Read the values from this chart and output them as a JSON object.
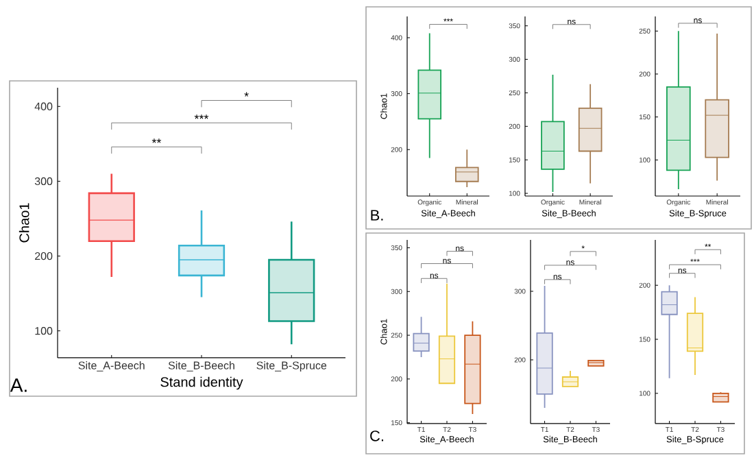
{
  "chart_data": [
    {
      "type": "box",
      "categories": [
        "Site_A-Beech",
        "Site_B-Beech",
        "Site_B-Spruce"
      ],
      "xlabel": "Stand identity",
      "ylabel": "Chao1",
      "ylim": [
        64,
        425
      ],
      "yticks": [
        100,
        200,
        300,
        400
      ],
      "colors": [
        "#f24a4a",
        "#3ab5d3",
        "#119a82"
      ],
      "boxes": [
        {
          "low": 172,
          "q1": 220,
          "median": 248,
          "q3": 284,
          "high": 310
        },
        {
          "low": 145,
          "q1": 174,
          "median": 195,
          "q3": 214,
          "high": 261
        },
        {
          "low": 82,
          "q1": 113,
          "median": 151,
          "q3": 195,
          "high": 246
        }
      ],
      "annotations": [
        "**",
        "***",
        "*",
        "A."
      ]
    },
    {
      "type": "box",
      "categories": [
        "Organic",
        "Mineral"
      ],
      "xlabel": "Site_A-Beech",
      "ylabel": "Chao1",
      "ylim": [
        117,
        438
      ],
      "yticks": [
        200,
        300,
        400
      ],
      "colors": [
        "#16a254",
        "#a57c52"
      ],
      "boxes": [
        {
          "low": 185,
          "q1": 255,
          "median": 301,
          "q3": 342,
          "high": 408
        },
        {
          "low": 133,
          "q1": 143,
          "median": 160,
          "q3": 168,
          "high": 200
        }
      ],
      "annotations": [
        "***",
        "B."
      ]
    },
    {
      "type": "box",
      "categories": [
        "Organic",
        "Mineral"
      ],
      "xlabel": "Site_B-Beech",
      "ylim": [
        96,
        364
      ],
      "yticks": [
        100,
        150,
        200,
        250,
        300,
        350
      ],
      "colors": [
        "#16a254",
        "#a57c52"
      ],
      "boxes": [
        {
          "low": 102,
          "q1": 136,
          "median": 163,
          "q3": 207,
          "high": 277
        },
        {
          "low": 115,
          "q1": 163,
          "median": 197,
          "q3": 227,
          "high": 263
        }
      ],
      "annotations": [
        "ns"
      ]
    },
    {
      "type": "box",
      "categories": [
        "Organic",
        "Mineral"
      ],
      "xlabel": "Site_B-Spruce",
      "ylim": [
        58,
        267
      ],
      "yticks": [
        100,
        150,
        200,
        250
      ],
      "colors": [
        "#16a254",
        "#a57c52"
      ],
      "boxes": [
        {
          "low": 66,
          "q1": 88,
          "median": 123,
          "q3": 185,
          "high": 250
        },
        {
          "low": 76,
          "q1": 103,
          "median": 152,
          "q3": 170,
          "high": 247
        }
      ],
      "annotations": [
        "ns"
      ]
    },
    {
      "type": "box",
      "categories": [
        "T1",
        "T2",
        "T3"
      ],
      "xlabel": "Site_A-Beech",
      "ylabel": "Chao1",
      "ylim": [
        149,
        359
      ],
      "yticks": [
        150,
        200,
        250,
        300,
        350
      ],
      "colors": [
        "#8893c0",
        "#ecc83c",
        "#c8561a"
      ],
      "boxes": [
        {
          "low": 225,
          "q1": 232,
          "median": 241,
          "q3": 252,
          "high": 271
        },
        {
          "low": 195,
          "q1": 195,
          "median": 223,
          "q3": 249,
          "high": 309
        },
        {
          "low": 160,
          "q1": 172,
          "median": 217,
          "q3": 250,
          "high": 266
        }
      ],
      "annotations": [
        "ns",
        "ns",
        "ns",
        "C."
      ]
    },
    {
      "type": "box",
      "categories": [
        "T1",
        "T2",
        "T3"
      ],
      "xlabel": "Site_B-Beech",
      "ylim": [
        107,
        375
      ],
      "yticks": [
        200,
        300
      ],
      "colors": [
        "#8893c0",
        "#ecc83c",
        "#c8561a"
      ],
      "boxes": [
        {
          "low": 130,
          "q1": 150,
          "median": 188,
          "q3": 239,
          "high": 308
        },
        {
          "low": 161,
          "q1": 161,
          "median": 168,
          "q3": 175,
          "high": 184
        },
        {
          "low": 191,
          "q1": 191,
          "median": 196,
          "q3": 199,
          "high": 200
        }
      ],
      "annotations": [
        "ns",
        "ns",
        "*"
      ]
    },
    {
      "type": "box",
      "categories": [
        "T1",
        "T2",
        "T3"
      ],
      "xlabel": "Site_B-Spruce",
      "ylim": [
        72,
        242
      ],
      "yticks": [
        100,
        150,
        200
      ],
      "colors": [
        "#8893c0",
        "#ecc83c",
        "#c8561a"
      ],
      "boxes": [
        {
          "low": 114,
          "q1": 173,
          "median": 182,
          "q3": 194,
          "high": 200
        },
        {
          "low": 117,
          "q1": 139,
          "median": 142,
          "q3": 174,
          "high": 189
        },
        {
          "low": 92,
          "q1": 92,
          "median": 97,
          "q3": 100,
          "high": 101
        }
      ],
      "annotations": [
        "ns",
        "***",
        "**"
      ]
    }
  ]
}
